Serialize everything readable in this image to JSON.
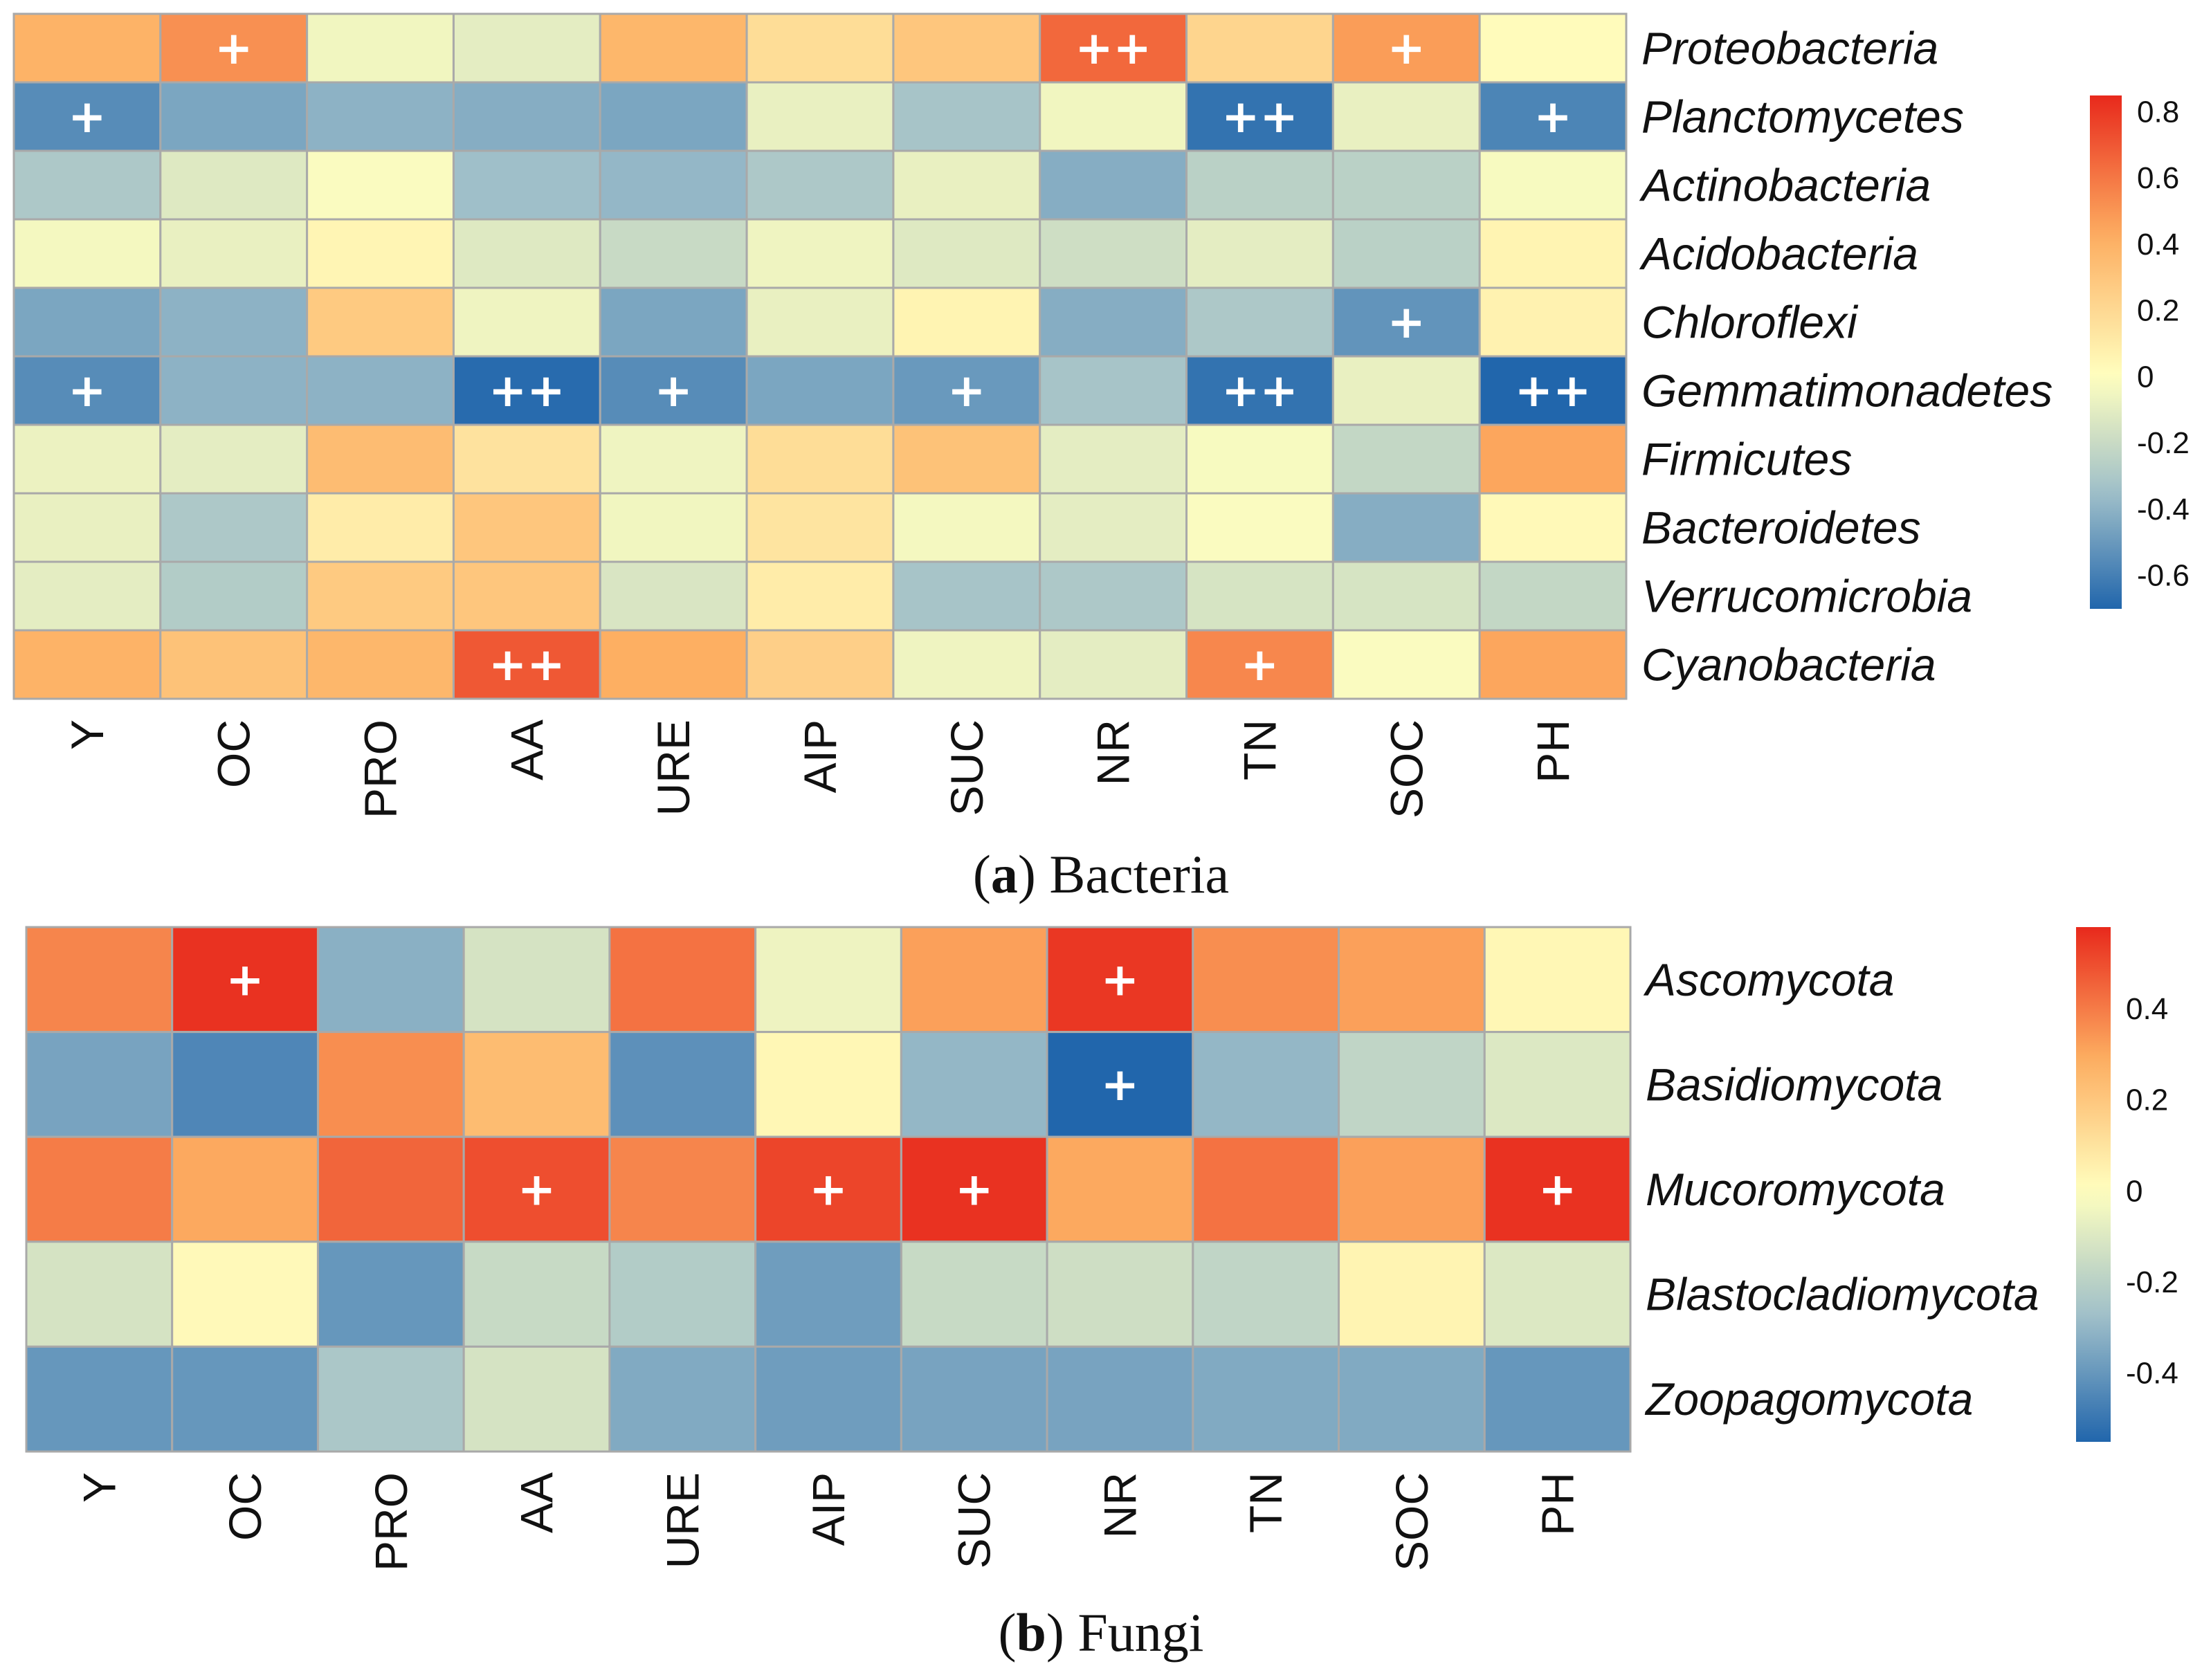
{
  "chart_data": [
    {
      "type": "heatmap",
      "panel_letter": "a",
      "caption": "Bacteria",
      "columns": [
        "Y",
        "OC",
        "PRO",
        "AA",
        "URE",
        "AIP",
        "SUC",
        "NR",
        "TN",
        "SOC",
        "PH"
      ],
      "rows": [
        "Proteobacteria",
        "Planctomycetes",
        "Actinobacteria",
        "Acidobacteria",
        "Chloroflexi",
        "Gemmatimonadetes",
        "Firmicutes",
        "Bacteroidetes",
        "Verrucomicrobia",
        "Cyanobacteria"
      ],
      "values": [
        [
          0.4,
          0.52,
          -0.05,
          -0.1,
          0.38,
          0.18,
          0.3,
          0.65,
          0.22,
          0.48,
          0.02
        ],
        [
          -0.55,
          -0.45,
          -0.4,
          -0.42,
          -0.45,
          -0.08,
          -0.32,
          -0.05,
          -0.65,
          -0.08,
          -0.58
        ],
        [
          -0.3,
          -0.12,
          -0.02,
          -0.35,
          -0.38,
          -0.3,
          -0.08,
          -0.42,
          -0.25,
          -0.25,
          -0.03
        ],
        [
          -0.04,
          -0.08,
          0.05,
          -0.12,
          -0.2,
          -0.06,
          -0.12,
          -0.18,
          -0.1,
          -0.25,
          0.06
        ],
        [
          -0.45,
          -0.4,
          0.28,
          -0.06,
          -0.45,
          -0.08,
          0.06,
          -0.42,
          -0.3,
          -0.52,
          0.07
        ],
        [
          -0.55,
          -0.4,
          -0.4,
          -0.68,
          -0.55,
          -0.45,
          -0.5,
          -0.32,
          -0.65,
          -0.08,
          -0.72
        ],
        [
          -0.07,
          -0.1,
          0.35,
          0.15,
          -0.06,
          0.18,
          0.32,
          -0.1,
          -0.03,
          -0.22,
          0.45
        ],
        [
          -0.08,
          -0.3,
          0.1,
          0.3,
          -0.05,
          0.14,
          -0.04,
          -0.1,
          -0.02,
          -0.42,
          0.03
        ],
        [
          -0.1,
          -0.28,
          0.28,
          0.3,
          -0.14,
          0.1,
          -0.32,
          -0.3,
          -0.15,
          -0.15,
          -0.22
        ],
        [
          0.4,
          0.32,
          0.38,
          0.7,
          0.42,
          0.25,
          -0.06,
          -0.1,
          0.55,
          -0.02,
          0.45
        ]
      ],
      "significance": [
        [
          "",
          "+",
          "",
          "",
          "",
          "",
          "",
          "++",
          "",
          "+",
          ""
        ],
        [
          "+",
          "",
          "",
          "",
          "",
          "",
          "",
          "",
          "++",
          "",
          "+"
        ],
        [
          "",
          "",
          "",
          "",
          "",
          "",
          "",
          "",
          "",
          "",
          ""
        ],
        [
          "",
          "",
          "",
          "",
          "",
          "",
          "",
          "",
          "",
          "",
          ""
        ],
        [
          "",
          "",
          "",
          "",
          "",
          "",
          "",
          "",
          "",
          "+",
          ""
        ],
        [
          "+",
          "",
          "",
          "++",
          "+",
          "",
          "+",
          "",
          "++",
          "",
          "++"
        ],
        [
          "",
          "",
          "",
          "",
          "",
          "",
          "",
          "",
          "",
          "",
          ""
        ],
        [
          "",
          "",
          "",
          "",
          "",
          "",
          "",
          "",
          "",
          "",
          ""
        ],
        [
          "",
          "",
          "",
          "",
          "",
          "",
          "",
          "",
          "",
          "",
          ""
        ],
        [
          "",
          "",
          "",
          "++",
          "",
          "",
          "",
          "",
          "+",
          "",
          ""
        ]
      ],
      "colorbar": {
        "min": -0.7,
        "max": 0.85,
        "ticks": [
          "0.8",
          "0.6",
          "0.4",
          "0.2",
          "0",
          "-0.2",
          "-0.4",
          "-0.6"
        ],
        "tick_values": [
          0.8,
          0.6,
          0.4,
          0.2,
          0,
          -0.2,
          -0.4,
          -0.6
        ]
      }
    },
    {
      "type": "heatmap",
      "panel_letter": "b",
      "caption": "Fungi",
      "columns": [
        "Y",
        "OC",
        "PRO",
        "AA",
        "URE",
        "AIP",
        "SUC",
        "NR",
        "TN",
        "SOC",
        "PH"
      ],
      "rows": [
        "Ascomycota",
        "Basidiomycota",
        "Mucoromycota",
        "Blastocladiomycota",
        "Zoopagomycota"
      ],
      "values": [
        [
          0.38,
          0.56,
          -0.32,
          -0.12,
          0.42,
          -0.05,
          0.32,
          0.55,
          0.36,
          0.32,
          0.03
        ],
        [
          -0.36,
          -0.45,
          0.36,
          0.24,
          -0.42,
          0.03,
          -0.3,
          -0.55,
          -0.3,
          -0.18,
          -0.1
        ],
        [
          0.4,
          0.3,
          0.45,
          0.5,
          0.38,
          0.52,
          0.56,
          0.3,
          0.42,
          0.32,
          0.56
        ],
        [
          -0.12,
          0.02,
          -0.4,
          -0.16,
          -0.22,
          -0.38,
          -0.16,
          -0.14,
          -0.18,
          0.04,
          -0.1
        ],
        [
          -0.4,
          -0.4,
          -0.24,
          -0.12,
          -0.34,
          -0.38,
          -0.36,
          -0.36,
          -0.34,
          -0.34,
          -0.4
        ]
      ],
      "significance": [
        [
          "",
          "+",
          "",
          "",
          "",
          "",
          "",
          "+",
          "",
          "",
          ""
        ],
        [
          "",
          "",
          "",
          "",
          "",
          "",
          "",
          "+",
          "",
          "",
          ""
        ],
        [
          "",
          "",
          "",
          "+",
          "",
          "+",
          "+",
          "",
          "",
          "",
          "+"
        ],
        [
          "",
          "",
          "",
          "",
          "",
          "",
          "",
          "",
          "",
          "",
          ""
        ],
        [
          "",
          "",
          "",
          "",
          "",
          "",
          "",
          "",
          "",
          "",
          ""
        ]
      ],
      "colorbar": {
        "min": -0.55,
        "max": 0.58,
        "ticks": [
          "0.4",
          "0.2",
          "0",
          "-0.2",
          "-0.4"
        ],
        "tick_values": [
          0.4,
          0.2,
          0,
          -0.2,
          -0.4
        ]
      }
    }
  ],
  "colors": {
    "negative": "#2166ac",
    "neutral": "#ffffbf",
    "positive": "#e8291c",
    "mid_negative": "#9fbfc9",
    "mid_positive": "#fdae61",
    "grid": "#a9a9a9"
  }
}
